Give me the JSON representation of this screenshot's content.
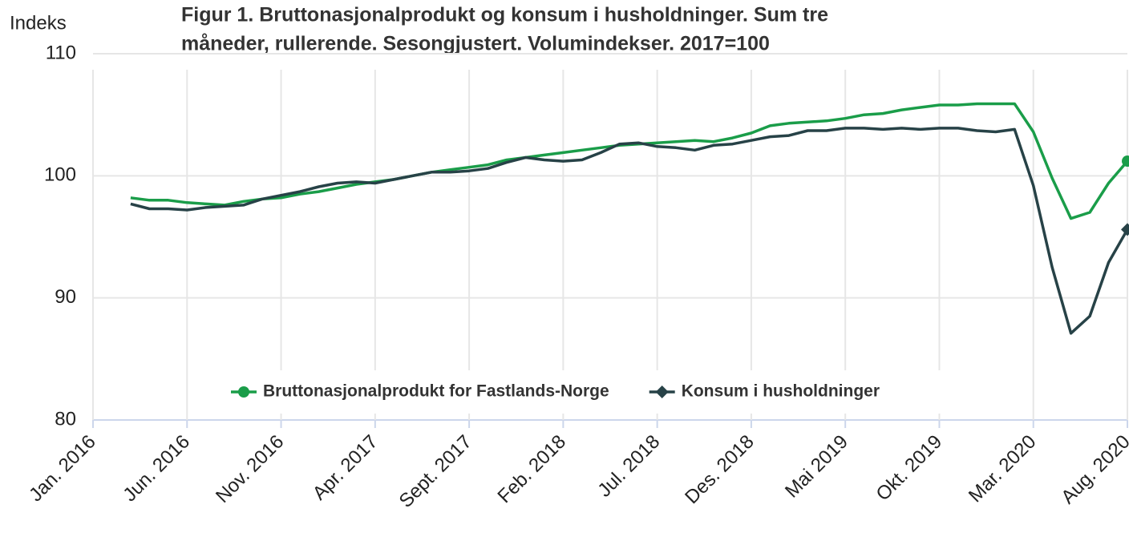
{
  "chart_data": {
    "type": "line",
    "title": [
      "Figur 1. Bruttonasjonalprodukt og konsum i husholdninger. Sum tre",
      "måneder, rullerende. Sesongjustert. Volumindekser. 2017=100"
    ],
    "y_label": "Indeks",
    "x": [
      "2016-03",
      "2016-04",
      "2016-05",
      "2016-06",
      "2016-07",
      "2016-08",
      "2016-09",
      "2016-10",
      "2016-11",
      "2016-12",
      "2017-01",
      "2017-02",
      "2017-03",
      "2017-04",
      "2017-05",
      "2017-06",
      "2017-07",
      "2017-08",
      "2017-09",
      "2017-10",
      "2017-11",
      "2017-12",
      "2018-01",
      "2018-02",
      "2018-03",
      "2018-04",
      "2018-05",
      "2018-06",
      "2018-07",
      "2018-08",
      "2018-09",
      "2018-10",
      "2018-11",
      "2018-12",
      "2019-01",
      "2019-02",
      "2019-03",
      "2019-04",
      "2019-05",
      "2019-06",
      "2019-07",
      "2019-08",
      "2019-09",
      "2019-10",
      "2019-11",
      "2019-12",
      "2020-01",
      "2020-02",
      "2020-03",
      "2020-04",
      "2020-05",
      "2020-06",
      "2020-07",
      "2020-08"
    ],
    "series": [
      {
        "name": "Bruttonasjonalprodukt for Fastlands-Norge",
        "color": "#1a9d49",
        "marker": "circle",
        "values": [
          98.2,
          98.0,
          98.0,
          97.8,
          97.7,
          97.6,
          97.9,
          98.1,
          98.2,
          98.5,
          98.7,
          99.0,
          99.3,
          99.5,
          99.7,
          100.0,
          100.3,
          100.5,
          100.7,
          100.9,
          101.3,
          101.5,
          101.7,
          101.9,
          102.1,
          102.3,
          102.5,
          102.6,
          102.7,
          102.8,
          102.9,
          102.8,
          103.1,
          103.5,
          104.1,
          104.3,
          104.4,
          104.5,
          104.7,
          105.0,
          105.1,
          105.4,
          105.6,
          105.8,
          105.8,
          105.9,
          105.9,
          105.9,
          103.6,
          99.8,
          96.5,
          97.0,
          99.4,
          101.2
        ]
      },
      {
        "name": "Konsum i husholdninger",
        "color": "#274247",
        "marker": "diamond",
        "values": [
          97.7,
          97.3,
          97.3,
          97.2,
          97.4,
          97.5,
          97.6,
          98.1,
          98.4,
          98.7,
          99.1,
          99.4,
          99.5,
          99.4,
          99.7,
          100.0,
          100.3,
          100.3,
          100.4,
          100.6,
          101.1,
          101.5,
          101.3,
          101.2,
          101.3,
          101.9,
          102.6,
          102.7,
          102.4,
          102.3,
          102.1,
          102.5,
          102.6,
          102.9,
          103.2,
          103.3,
          103.7,
          103.7,
          103.9,
          103.9,
          103.8,
          103.9,
          103.8,
          103.9,
          103.9,
          103.7,
          103.6,
          103.8,
          99.2,
          92.5,
          87.1,
          88.5,
          92.9,
          95.6
        ]
      }
    ],
    "xlim": [
      "2016-01",
      "2020-08"
    ],
    "xticks": [
      {
        "value": "2016-01",
        "label": "Jan. 2016"
      },
      {
        "value": "2016-06",
        "label": "Jun. 2016"
      },
      {
        "value": "2016-11",
        "label": "Nov. 2016"
      },
      {
        "value": "2017-04",
        "label": "Apr. 2017"
      },
      {
        "value": "2017-09",
        "label": "Sept. 2017"
      },
      {
        "value": "2018-02",
        "label": "Feb. 2018"
      },
      {
        "value": "2018-07",
        "label": "Jul. 2018"
      },
      {
        "value": "2018-12",
        "label": "Des. 2018"
      },
      {
        "value": "2019-05",
        "label": "Mai 2019"
      },
      {
        "value": "2019-10",
        "label": "Okt. 2019"
      },
      {
        "value": "2020-03",
        "label": "Mar. 2020"
      },
      {
        "value": "2020-08",
        "label": "Aug. 2020"
      }
    ],
    "ylim": [
      80,
      110
    ],
    "yticks": [
      80,
      90,
      100,
      110
    ],
    "grid": true,
    "legend": "center"
  }
}
